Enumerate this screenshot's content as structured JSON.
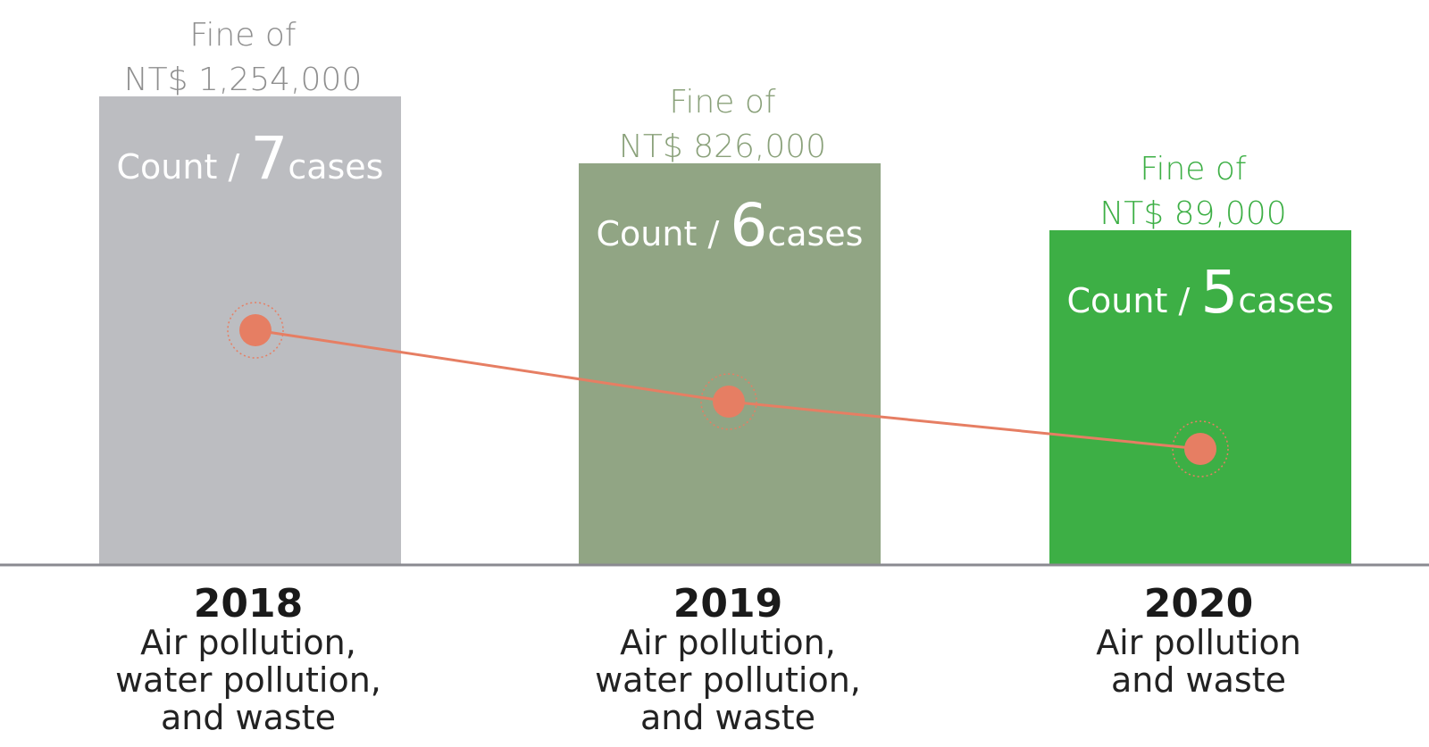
{
  "chart_data": {
    "type": "bar",
    "categories": [
      "2018",
      "2019",
      "2020"
    ],
    "series": [
      {
        "values": [
          7,
          6,
          5
        ],
        "unit": "cases",
        "label_prefix": "Count /",
        "colors": [
          "#bcbdc1",
          "#91a584",
          "#3daf45"
        ]
      },
      {
        "type": "line",
        "values": [
          1254000,
          826000,
          89000
        ],
        "color": "#e67e63"
      }
    ],
    "fine_labels": [
      {
        "line1": "Fine of",
        "line2": "NT$ 1,254,000",
        "color": "#8f8f8f"
      },
      {
        "line1": "Fine of",
        "line2": "NT$ 826,000",
        "color": "#8aa17a"
      },
      {
        "line1": "Fine of",
        "line2": "NT$ 89,000",
        "color": "#3daf45"
      }
    ],
    "descriptions": [
      [
        "Air pollution,",
        "water pollution,",
        "and waste"
      ],
      [
        "Air pollution,",
        "water pollution,",
        "and waste"
      ],
      [
        "Air pollution",
        "and waste"
      ]
    ],
    "baseline_color": "#8a8a90"
  }
}
